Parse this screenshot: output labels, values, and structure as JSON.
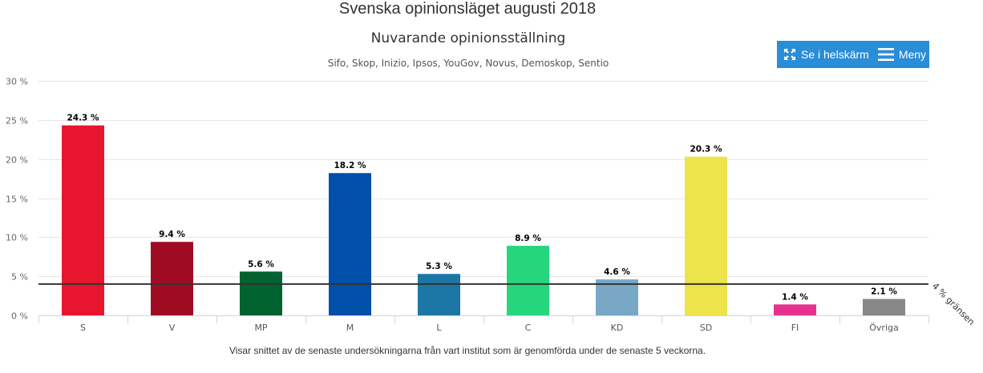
{
  "page": {
    "title": "Svenska opinionsläget augusti 2018",
    "footer_note": "Visar snittet av de senaste undersökningarna från vart institut som är genomförda under de senaste 5 veckorna."
  },
  "toolbar": {
    "fullscreen_label": "Se i helskärm",
    "fullscreen_icon": "expand-arrows-icon",
    "menu_label": "Meny",
    "menu_icon": "hamburger-icon",
    "background_color": "#2a8dd8"
  },
  "chart_data": {
    "type": "bar",
    "title": "Nuvarande opinionsställning",
    "subtitle": "Sifo, Skop, Inizio, Ipsos, YouGov, Novus, Demoskop, Sentio",
    "xlabel": "",
    "ylabel": "",
    "ylim": [
      0,
      30
    ],
    "yticks": [
      0,
      5,
      10,
      15,
      20,
      25,
      30
    ],
    "ytick_labels": [
      "0 %",
      "5 %",
      "10 %",
      "15 %",
      "20 %",
      "25 %",
      "30 %"
    ],
    "grid": true,
    "legend": "none",
    "categories": [
      "S",
      "V",
      "MP",
      "M",
      "L",
      "C",
      "KD",
      "SD",
      "FI",
      "Övriga"
    ],
    "values": [
      24.3,
      9.4,
      5.6,
      18.2,
      5.3,
      8.9,
      4.6,
      20.3,
      1.4,
      2.1
    ],
    "data_labels": [
      "24.3 %",
      "9.4 %",
      "5.6 %",
      "18.2 %",
      "5.3 %",
      "8.9 %",
      "4.6 %",
      "20.3 %",
      "1.4 %",
      "2.1 %"
    ],
    "colors": [
      "#e8152f",
      "#a00b24",
      "#00622f",
      "#004fa8",
      "#1c76a6",
      "#25d67c",
      "#79a8c6",
      "#ede34a",
      "#e6328e",
      "#888888"
    ],
    "threshold": {
      "value": 4,
      "label": "4 % gränsen",
      "color": "#333333"
    }
  }
}
